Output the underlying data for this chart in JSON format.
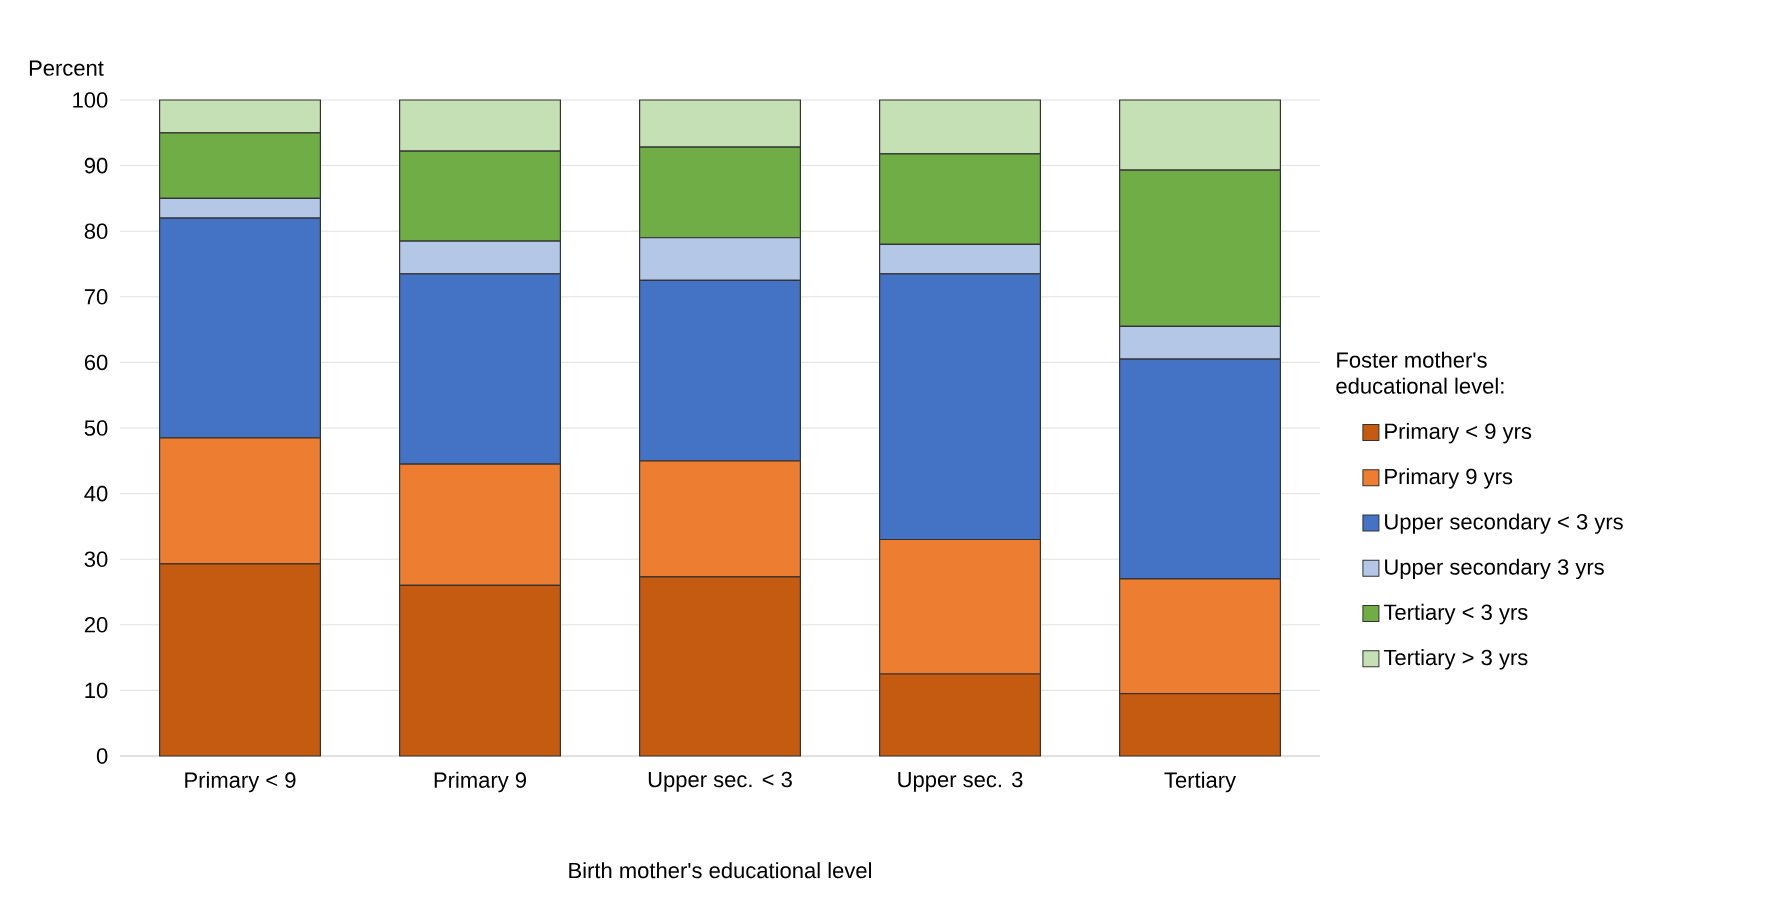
{
  "chart_data": {
    "type": "bar",
    "stacked": true,
    "ylabel": "Percent",
    "xlabel": "Birth mother's educational level",
    "legend_title": "Foster mother's educational level:",
    "categories": [
      "Primary < 9",
      "Primary 9",
      "Upper sec. < 3",
      "Upper sec. 3",
      "Tertiary"
    ],
    "series": [
      {
        "name": "Primary < 9 yrs",
        "color": "#c55a11",
        "values": [
          29.3,
          26.0,
          27.3,
          12.5,
          9.5
        ]
      },
      {
        "name": "Primary 9 yrs",
        "color": "#ed7d31",
        "values": [
          19.2,
          18.5,
          17.7,
          20.5,
          17.5
        ]
      },
      {
        "name": "Upper secondary < 3 yrs",
        "color": "#4472c4",
        "values": [
          33.5,
          29.0,
          27.5,
          40.5,
          33.5
        ]
      },
      {
        "name": "Upper secondary 3 yrs",
        "color": "#b4c7e7",
        "values": [
          3.0,
          5.0,
          6.5,
          4.5,
          5.0
        ]
      },
      {
        "name": "Tertiary < 3 yrs",
        "color": "#70ad47",
        "values": [
          10.0,
          13.7,
          13.8,
          13.8,
          23.8
        ]
      },
      {
        "name": "Tertiary > 3 yrs",
        "color": "#c5e0b4",
        "values": [
          5.0,
          7.8,
          7.2,
          8.2,
          10.7
        ]
      }
    ],
    "ylim": [
      0,
      100
    ],
    "yticks": [
      0,
      10,
      20,
      30,
      40,
      50,
      60,
      70,
      80,
      90,
      100
    ],
    "grid": "y",
    "legend": "right"
  }
}
